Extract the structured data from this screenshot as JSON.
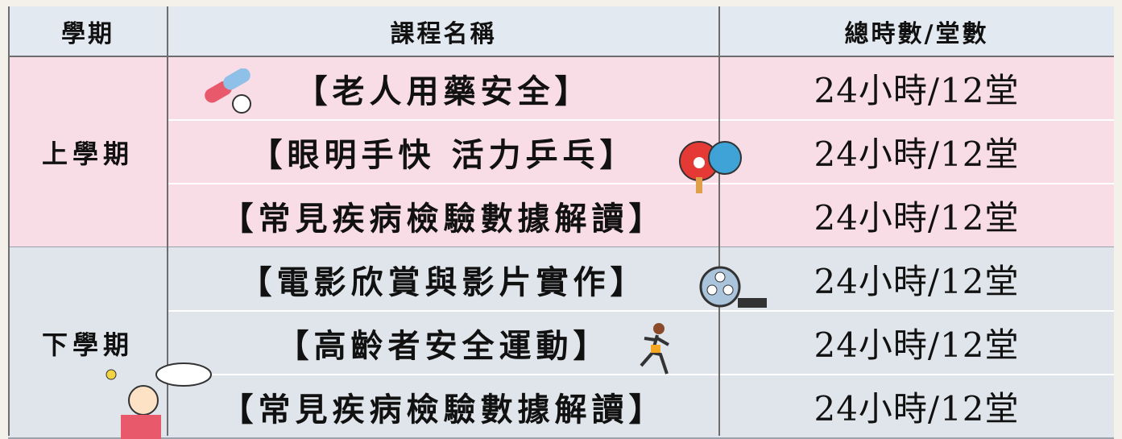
{
  "header": [
    "學期",
    "課程名稱",
    "總時數/堂數"
  ],
  "terms": [
    {
      "term": "上學期",
      "courses": [
        {
          "name": "【老人用藥安全】",
          "hours": "24小時/12堂"
        },
        {
          "name": "【眼明手快 活力乒乓】",
          "hours": "24小時/12堂"
        },
        {
          "name": "【常見疾病檢驗數據解讀】",
          "hours": "24小時/12堂"
        }
      ]
    },
    {
      "term": "下學期",
      "courses": [
        {
          "name": "【電影欣賞與影片實作】",
          "hours": "24小時/12堂"
        },
        {
          "name": "【高齡者安全運動】",
          "hours": "24小時/12堂"
        },
        {
          "name": "【常見疾病檢驗數據解讀】",
          "hours": "24小時/12堂"
        }
      ]
    }
  ]
}
